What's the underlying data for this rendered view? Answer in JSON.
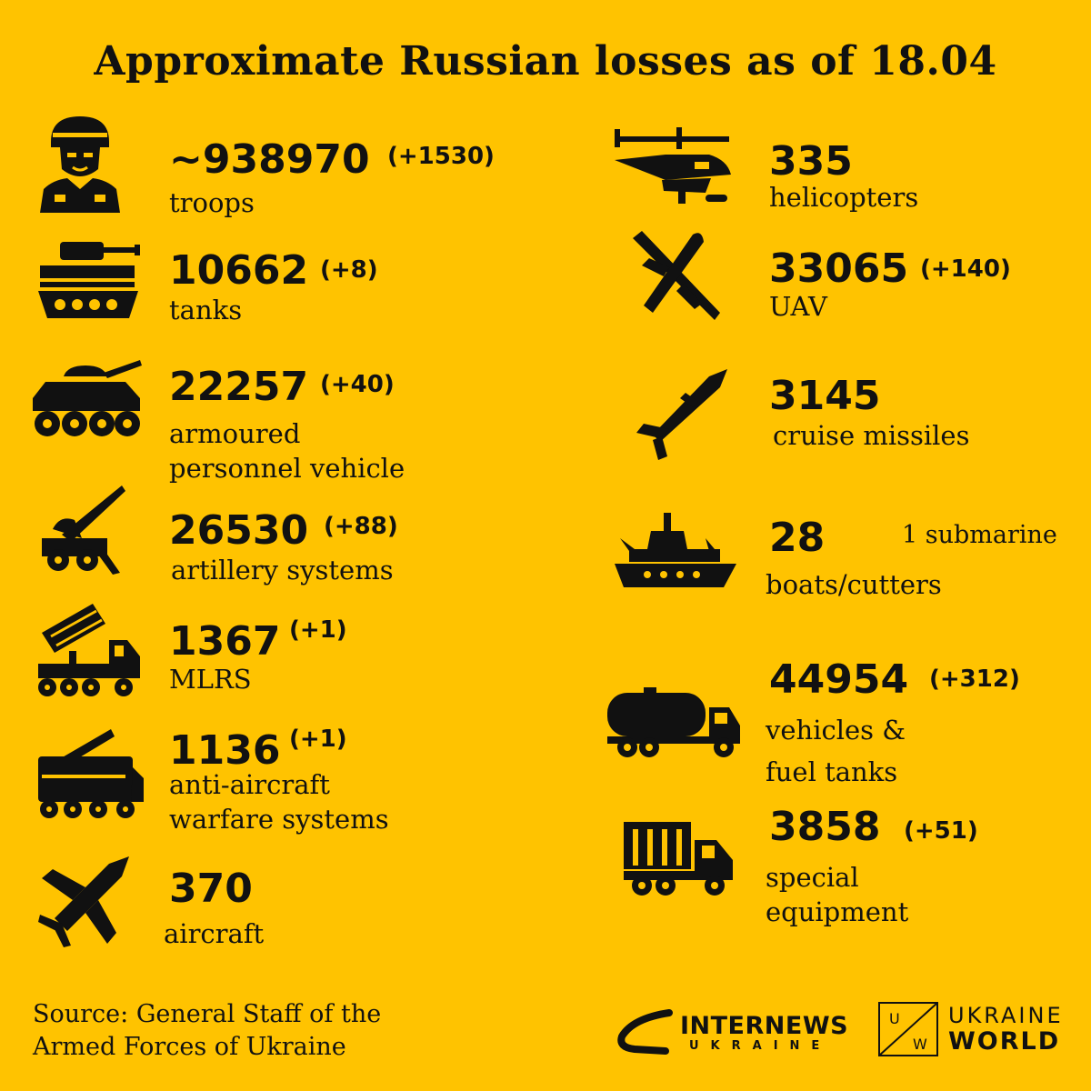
{
  "title": "Approximate Russian losses as of 18.04",
  "items": [
    {
      "name": "troops",
      "value": "~938970",
      "delta": "(+1530)",
      "label": "troops",
      "icon": "soldier-icon"
    },
    {
      "name": "tanks",
      "value": "10662",
      "delta": "(+8)",
      "label": "tanks",
      "icon": "tank-icon"
    },
    {
      "name": "apv",
      "value": "22257",
      "delta": "(+40)",
      "label_lines": [
        "armoured",
        "personnel vehicle"
      ],
      "icon": "armoured-vehicle-icon"
    },
    {
      "name": "artillery",
      "value": "26530",
      "delta": "(+88)",
      "label": "artillery systems",
      "icon": "artillery-icon"
    },
    {
      "name": "mlrs",
      "value": "1367",
      "delta": "(+1)",
      "label": "MLRS",
      "icon": "mlrs-icon"
    },
    {
      "name": "anti-aircraft",
      "value": "1136",
      "delta": "(+1)",
      "label_lines": [
        "anti-aircraft",
        "warfare systems"
      ],
      "icon": "anti-aircraft-icon"
    },
    {
      "name": "aircraft",
      "value": "370",
      "delta": "",
      "label": "aircraft",
      "icon": "jet-icon"
    },
    {
      "name": "helicopters",
      "value": "335",
      "delta": "",
      "label": "helicopters",
      "icon": "helicopter-icon"
    },
    {
      "name": "uav",
      "value": "33065",
      "delta": "(+140)",
      "label": "UAV",
      "icon": "drone-icon"
    },
    {
      "name": "cruise-missiles",
      "value": "3145",
      "delta": "",
      "label": "cruise missiles",
      "icon": "missile-icon"
    },
    {
      "name": "boats",
      "value": "28",
      "delta": "",
      "note": "1 submarine",
      "label": "boats/cutters",
      "icon": "warship-icon"
    },
    {
      "name": "vehicles",
      "value": "44954",
      "delta": "(+312)",
      "label_lines": [
        "vehicles &",
        "fuel tanks"
      ],
      "icon": "fuel-truck-icon"
    },
    {
      "name": "special-equipment",
      "value": "3858",
      "delta": "(+51)",
      "label_lines": [
        "special",
        "equipment"
      ],
      "icon": "special-truck-icon"
    }
  ],
  "source_lines": [
    "Source: General Staff of the",
    "Armed Forces of Ukraine"
  ],
  "logos": {
    "internews": {
      "word": "INTERNEWS",
      "sub": "UKRAINE"
    },
    "ukraine_world": {
      "line1": "UKRAINE",
      "line2": "WORLD",
      "mark_left": "U",
      "mark_right": "W"
    }
  },
  "colors": {
    "background": "#FFC300",
    "ink": "#111111"
  }
}
